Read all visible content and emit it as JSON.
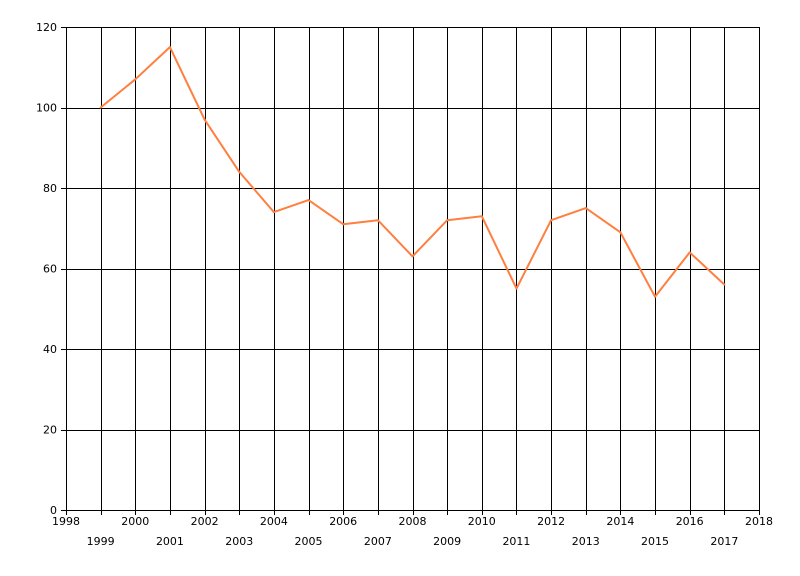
{
  "chart_data": {
    "type": "line",
    "title": "",
    "xlabel": "",
    "ylabel": "",
    "xlim": [
      1998,
      2018
    ],
    "ylim": [
      0,
      120
    ],
    "x_ticks": [
      1998,
      1999,
      2000,
      2001,
      2002,
      2003,
      2004,
      2005,
      2006,
      2007,
      2008,
      2009,
      2010,
      2011,
      2012,
      2013,
      2014,
      2015,
      2016,
      2017,
      2018
    ],
    "y_ticks": [
      0,
      20,
      40,
      60,
      80,
      100,
      120
    ],
    "grid": true,
    "legend": "none",
    "colors": {
      "line": "#FF7F3F",
      "grid": "#000000",
      "background": "#FFFFFF"
    },
    "series": [
      {
        "x": [
          1999,
          2000,
          2001,
          2002,
          2003,
          2004,
          2005,
          2006,
          2007,
          2008,
          2009,
          2010,
          2011,
          2012,
          2013,
          2014,
          2015,
          2016,
          2017
        ],
        "values": [
          100,
          107,
          115,
          97,
          84,
          74,
          77,
          71,
          72,
          63,
          72,
          73,
          55,
          72,
          75,
          69,
          53,
          64,
          56
        ]
      }
    ]
  }
}
